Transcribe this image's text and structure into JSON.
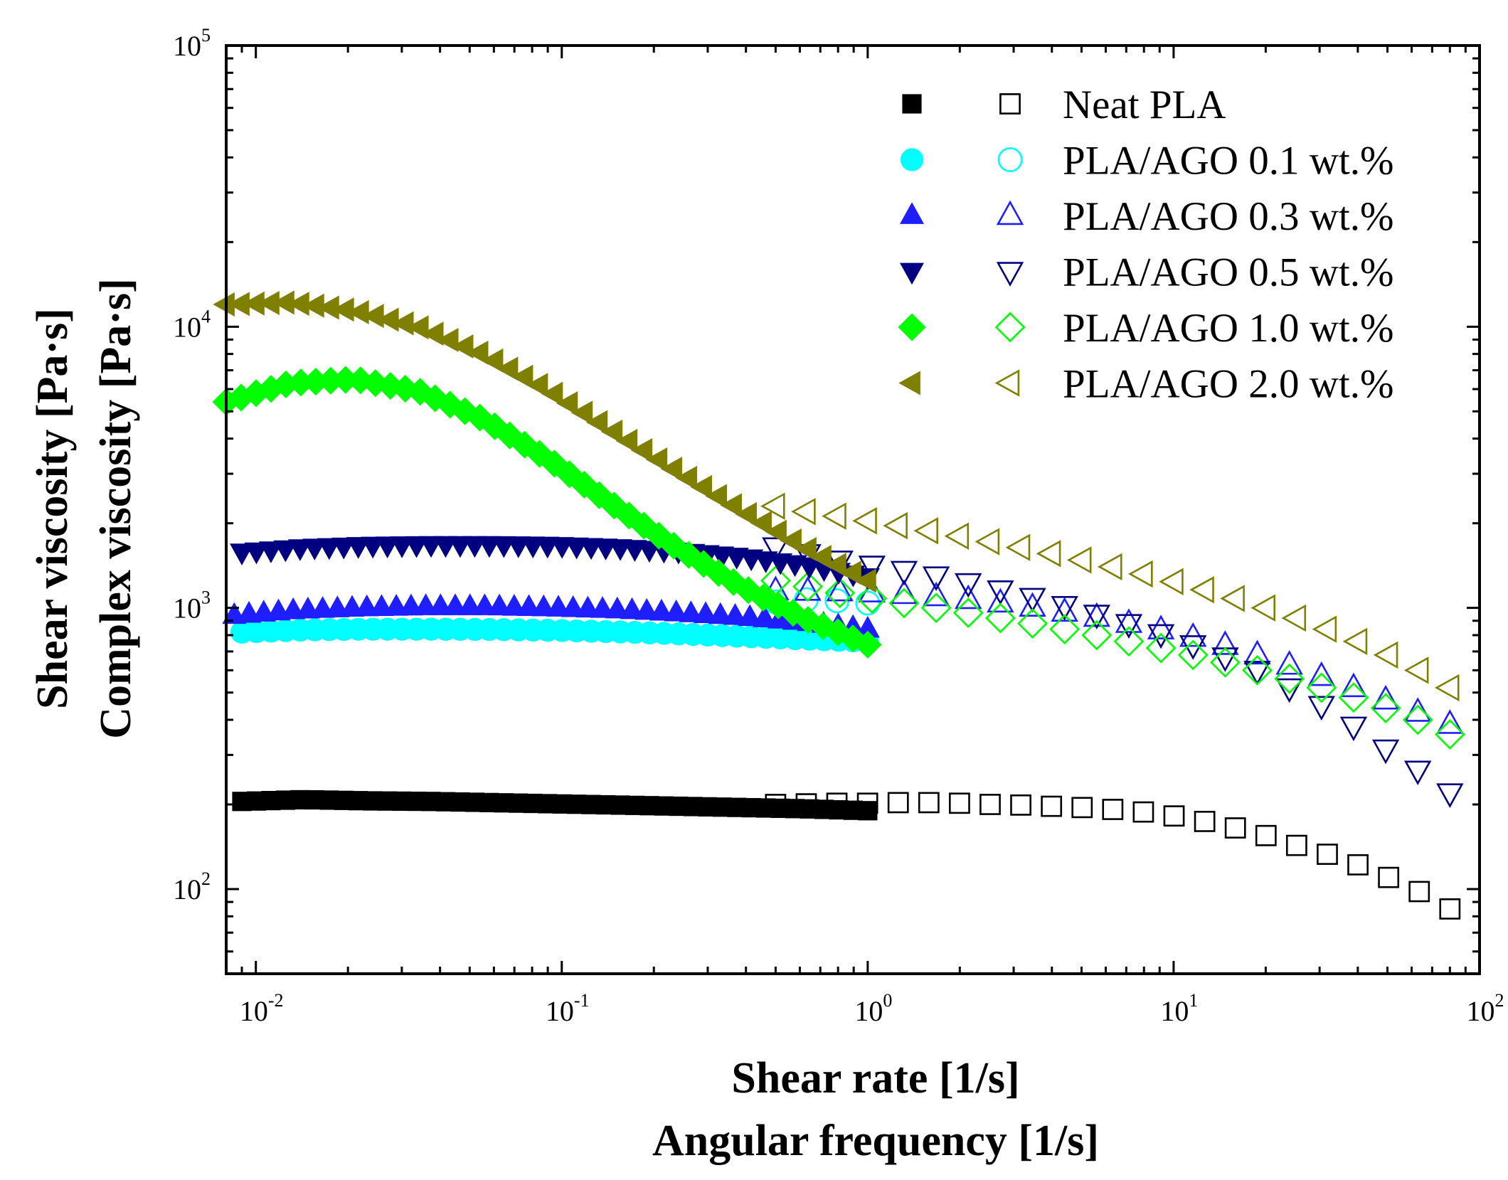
{
  "chart_data": {
    "type": "scatter",
    "x_scale": "log",
    "y_scale": "log",
    "xlim": [
      0.008,
      100
    ],
    "ylim": [
      50,
      100000
    ],
    "xlabel": [
      "Shear rate [1/s]",
      "Angular frequency [1/s]"
    ],
    "ylabel": [
      "Shear viscosity [Pa·s]",
      "Complex viscosity [Pa·s]"
    ],
    "x_ticks": [
      {
        "base": "10",
        "exp": "-2",
        "value": 0.01
      },
      {
        "base": "10",
        "exp": "-1",
        "value": 0.1
      },
      {
        "base": "10",
        "exp": "0",
        "value": 1
      },
      {
        "base": "10",
        "exp": "1",
        "value": 10
      },
      {
        "base": "10",
        "exp": "2",
        "value": 100
      }
    ],
    "y_ticks": [
      {
        "base": "10",
        "exp": "2",
        "value": 100
      },
      {
        "base": "10",
        "exp": "3",
        "value": 1000
      },
      {
        "base": "10",
        "exp": "4",
        "value": 10000
      },
      {
        "base": "10",
        "exp": "5",
        "value": 100000
      }
    ],
    "legend_position": "top-right",
    "series": [
      {
        "name": "Neat PLA",
        "color": "#000000",
        "marker": "square",
        "shear": {
          "x_range": [
            0.009,
            1.0
          ],
          "y": [
            205,
            208,
            206,
            205,
            203,
            201,
            199,
            197,
            195,
            193,
            190
          ]
        },
        "complex": {
          "x_range": [
            0.5,
            80
          ],
          "y": [
            200,
            201,
            202,
            202,
            203,
            203,
            202,
            200,
            199,
            197,
            195,
            192,
            188,
            182,
            174,
            165,
            155,
            143,
            133,
            122,
            110,
            98,
            85
          ]
        }
      },
      {
        "name": "PLA/AGO 0.1 wt.%",
        "color": "#00FFFF",
        "marker": "circle",
        "shear": {
          "x_range": [
            0.009,
            1.0
          ],
          "y": [
            820,
            835,
            840,
            840,
            838,
            832,
            822,
            808,
            792,
            775,
            760
          ]
        },
        "complex": {
          "x_range": [
            0.5,
            1.0
          ],
          "y": [
            1050,
            1070,
            1060,
            1040
          ]
        }
      },
      {
        "name": "PLA/AGO 0.3 wt.%",
        "color": "#1E1EFF",
        "marker": "triangle-up",
        "shear": {
          "x_range": [
            0.0085,
            1.0
          ],
          "y": [
            940,
            980,
            1000,
            1010,
            1010,
            1000,
            985,
            960,
            930,
            890,
            840
          ]
        },
        "complex": {
          "x_range": [
            0.5,
            80
          ],
          "y": [
            1150,
            1145,
            1140,
            1130,
            1115,
            1095,
            1070,
            1040,
            1005,
            965,
            925,
            880,
            835,
            785,
            735,
            680,
            625,
            570,
            520,
            470,
            425,
            385
          ]
        }
      },
      {
        "name": "PLA/AGO 0.5 wt.%",
        "color": "#000080",
        "marker": "triangle-down",
        "shear": {
          "x_range": [
            0.009,
            1.0
          ],
          "y": [
            1580,
            1640,
            1670,
            1680,
            1680,
            1670,
            1640,
            1590,
            1520,
            1420,
            1290
          ]
        },
        "complex": {
          "x_range": [
            0.5,
            80
          ],
          "y": [
            1650,
            1560,
            1480,
            1420,
            1360,
            1300,
            1230,
            1160,
            1090,
            1020,
            950,
            880,
            810,
            740,
            670,
            600,
            520,
            450,
            380,
            315,
            265,
            220
          ]
        }
      },
      {
        "name": "PLA/AGO 1.0 wt.%",
        "color": "#00FF00",
        "marker": "diamond",
        "shear": {
          "x_range": [
            0.008,
            1.0
          ],
          "y": [
            5400,
            6300,
            6500,
            5900,
            4700,
            3400,
            2350,
            1650,
            1200,
            920,
            740
          ]
        },
        "complex": {
          "x_range": [
            0.5,
            80
          ],
          "y": [
            1250,
            1190,
            1130,
            1080,
            1040,
            1000,
            960,
            920,
            880,
            840,
            800,
            760,
            720,
            680,
            640,
            600,
            560,
            520,
            480,
            440,
            400,
            355
          ]
        }
      },
      {
        "name": "PLA/AGO 2.0 wt.%",
        "color": "#808000",
        "marker": "triangle-left",
        "shear": {
          "x_range": [
            0.008,
            1.0
          ],
          "y": [
            12000,
            12200,
            11400,
            10000,
            8000,
            6000,
            4300,
            3100,
            2250,
            1650,
            1250
          ]
        },
        "complex": {
          "x_range": [
            0.5,
            80
          ],
          "y": [
            2300,
            2200,
            2120,
            2040,
            1960,
            1880,
            1800,
            1720,
            1640,
            1560,
            1480,
            1400,
            1320,
            1240,
            1160,
            1080,
            1000,
            920,
            840,
            760,
            680,
            600,
            520
          ]
        }
      }
    ]
  }
}
